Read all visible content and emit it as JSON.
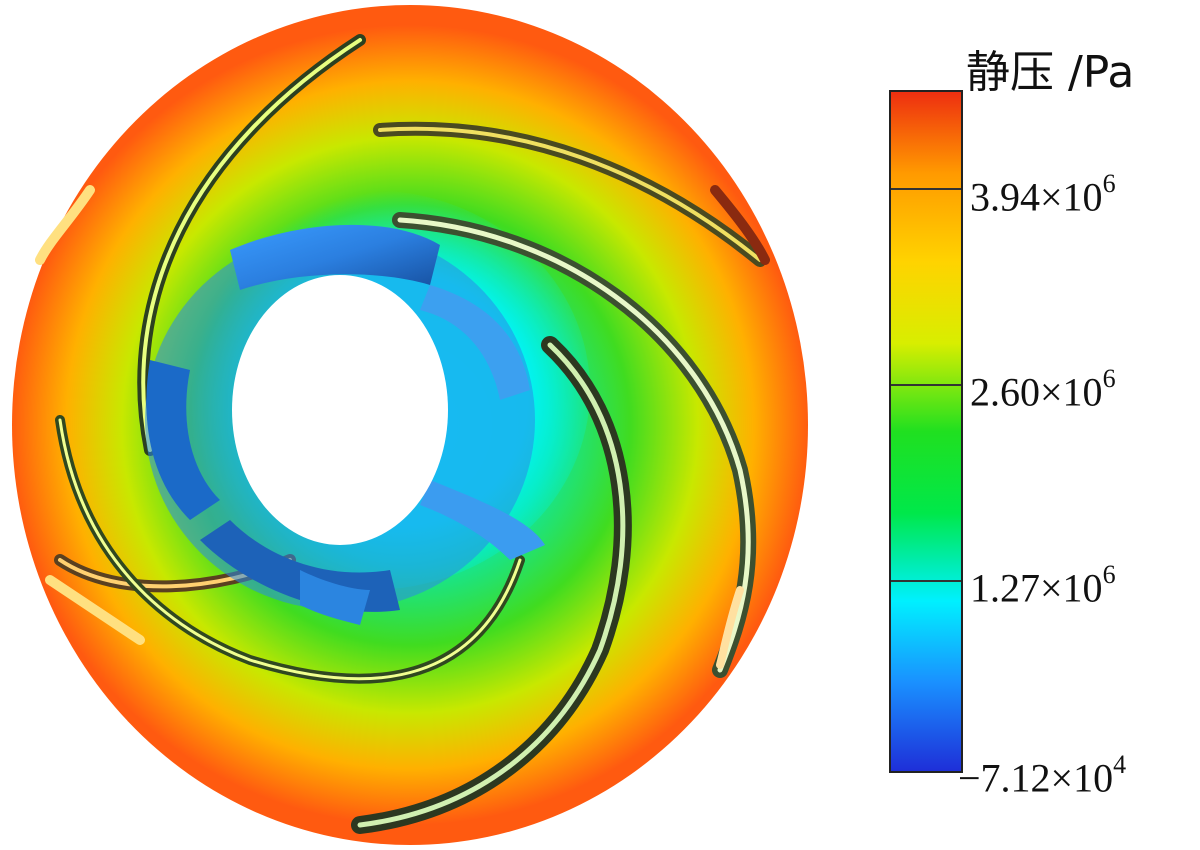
{
  "legend": {
    "title": "静压 /Pa",
    "ticks": [
      {
        "mantissa": "3.94×10",
        "exponent": "6"
      },
      {
        "mantissa": "2.60×10",
        "exponent": "6"
      },
      {
        "mantissa": "1.27×10",
        "exponent": "6"
      },
      {
        "mantissa": "−7.12×10",
        "exponent": "4"
      }
    ],
    "colors": [
      "#1e2fd8",
      "#1a90ff",
      "#00f0ff",
      "#00e84a",
      "#20e020",
      "#d8ee00",
      "#ffd300",
      "#ff9a00",
      "#ee2f10"
    ]
  }
}
